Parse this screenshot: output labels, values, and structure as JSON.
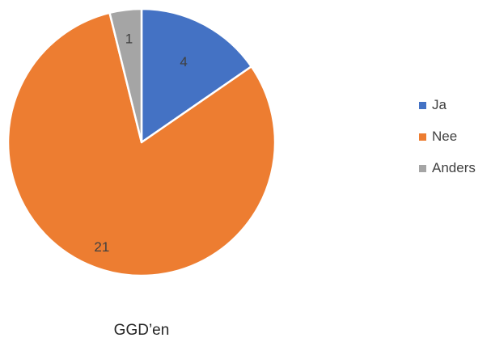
{
  "chart_data": {
    "type": "pie",
    "categories": [
      "Ja",
      "Nee",
      "Anders"
    ],
    "values": [
      4,
      21,
      1
    ],
    "colors": [
      "#4472C4",
      "#ED7D31",
      "#A5A5A5"
    ],
    "data_labels": [
      "4",
      "21",
      "1"
    ],
    "legend": "right",
    "caption": "GGD’en"
  }
}
